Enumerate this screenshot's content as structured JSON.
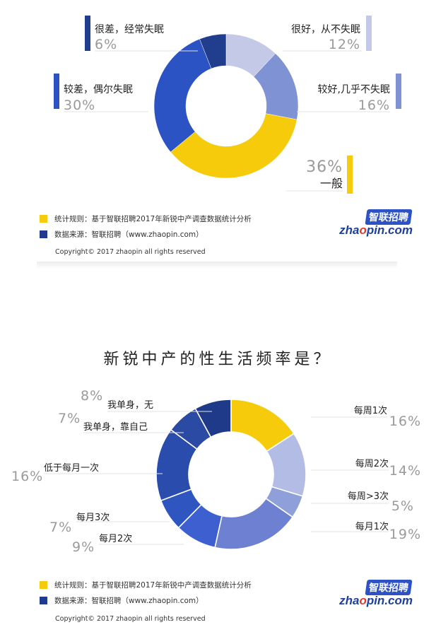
{
  "chart_data": [
    {
      "type": "pie",
      "title": "",
      "categories": [
        "很好，从不失眠",
        "较好,几乎不失眠",
        "一般",
        "较差，偶尔失眠",
        "很差，经常失眠"
      ],
      "values": [
        12,
        16,
        36,
        30,
        6
      ],
      "value_labels": [
        "12%",
        "16%",
        "36%",
        "30%",
        "6%"
      ],
      "colors": [
        "#c3c9e6",
        "#7f92d3",
        "#f5cb0b",
        "#2b53c3",
        "#213d8d"
      ],
      "donut": true
    },
    {
      "type": "pie",
      "title": "新锐中产的性生活频率是？",
      "categories": [
        "每周1次",
        "每周2次",
        "每周>3次",
        "每月1次",
        "每月2次",
        "每月3次",
        "低于每月一次",
        "我单身，靠自己",
        "我单身，无"
      ],
      "values": [
        16,
        14,
        5,
        19,
        9,
        7,
        16,
        7,
        8
      ],
      "value_labels": [
        "16%",
        "14%",
        "5%",
        "19%",
        "9%",
        "7%",
        "16%",
        "7%",
        "8%"
      ],
      "colors": [
        "#f5cb0b",
        "#b3bce5",
        "#8e9fda",
        "#6d80d1",
        "#3d5fd0",
        "#2e55c0",
        "#2a4cac",
        "#2a4aa3",
        "#1f3a88"
      ],
      "donut": true
    }
  ],
  "legend": {
    "rule_text": "统计规则：基于智联招聘2017年新锐中产调查数据统计分析",
    "source_text": "数据来源：智联招聘（www.zhaopin.com）",
    "rule_color": "#f5cb0b",
    "source_color": "#203a8e"
  },
  "copyright": "Copyright© 2017 zhaopin all rights reserved",
  "logo": {
    "cn": "智联招聘",
    "en_prefix": "zha",
    "en_dot": "o",
    "en_suffix": "pin.com"
  }
}
